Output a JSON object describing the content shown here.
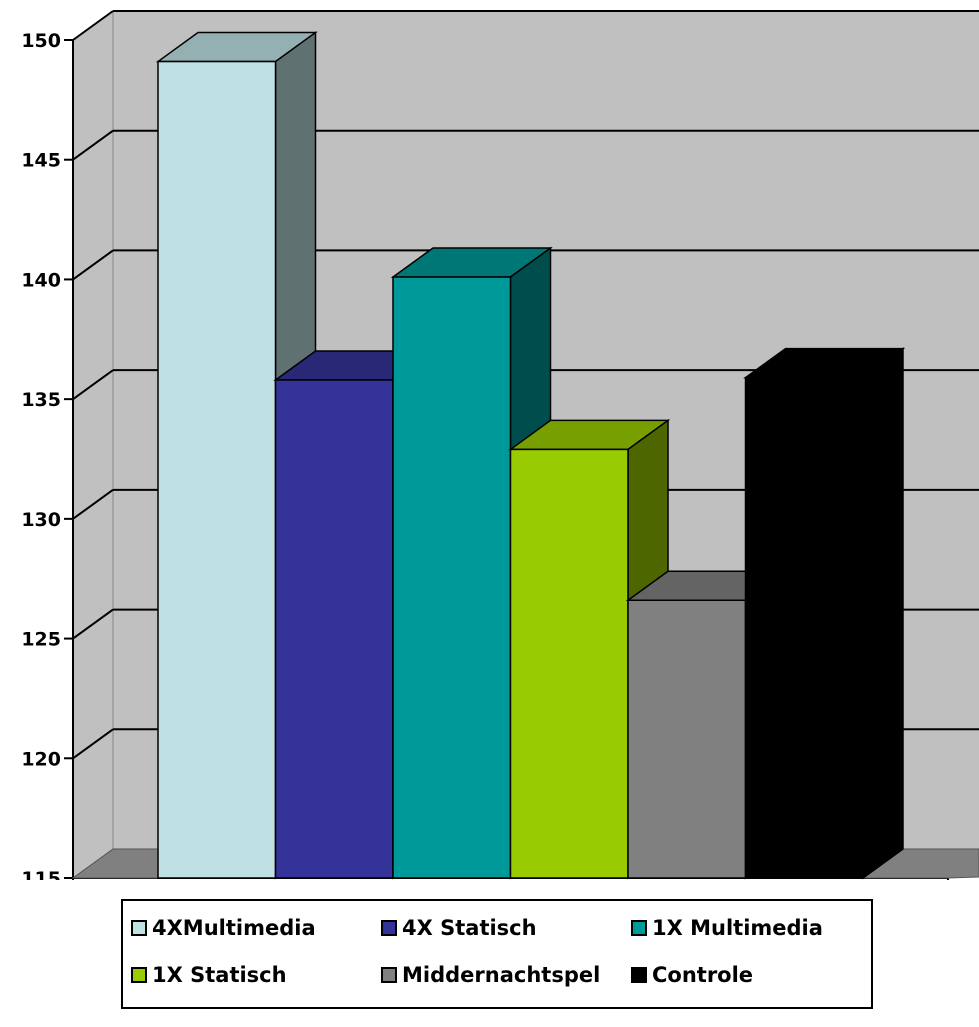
{
  "chart_data": {
    "type": "bar",
    "title": "",
    "xlabel": "",
    "ylabel": "",
    "ylim": [
      115,
      150
    ],
    "yticks": [
      115,
      120,
      125,
      130,
      135,
      140,
      145,
      150
    ],
    "grid": true,
    "legend_position": "bottom",
    "series": [
      {
        "name": "4XMultimedia",
        "value": 149.1,
        "color": "#BFE1E4"
      },
      {
        "name": "4X Statisch",
        "value": 135.8,
        "color": "#333399"
      },
      {
        "name": "1X Multimedia",
        "value": 140.1,
        "color": "#009999"
      },
      {
        "name": "1X Statisch",
        "value": 132.9,
        "color": "#99CC00"
      },
      {
        "name": "Middernachtspel",
        "value": 126.6,
        "color": "#808080"
      },
      {
        "name": "Controle",
        "value": 135.9,
        "color": "#000000"
      }
    ]
  }
}
